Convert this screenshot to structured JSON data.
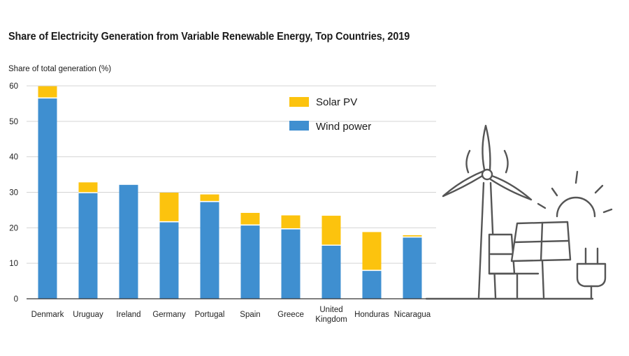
{
  "chart_data": {
    "type": "bar",
    "stacked": true,
    "title": "Share of Electricity Generation from Variable Renewable Energy, Top Countries, 2019",
    "ylabel": "Share of total generation (%)",
    "xlabel": "",
    "ylim": [
      0,
      60
    ],
    "yticks": [
      0,
      10,
      20,
      30,
      40,
      50,
      60
    ],
    "grid": true,
    "legend_position": "top-right",
    "categories": [
      "Denmark",
      "Uruguay",
      "Ireland",
      "Germany",
      "Portugal",
      "Spain",
      "Greece",
      "United Kingdom",
      "Honduras",
      "Nicaragua"
    ],
    "category_lines": [
      [
        "Denmark"
      ],
      [
        "Uruguay"
      ],
      [
        "Ireland"
      ],
      [
        "Germany"
      ],
      [
        "Portugal"
      ],
      [
        "Spain"
      ],
      [
        "Greece"
      ],
      [
        "United",
        "Kingdom"
      ],
      [
        "Honduras"
      ],
      [
        "Nicaragua"
      ]
    ],
    "series": [
      {
        "name": "Wind power",
        "color": "#3f8fd0",
        "values": [
          56.6,
          29.9,
          32.1,
          21.7,
          27.4,
          20.8,
          19.7,
          15.1,
          8.0,
          17.4
        ]
      },
      {
        "name": "Solar PV",
        "color": "#fcc30e",
        "values": [
          3.3,
          2.9,
          0.0,
          8.2,
          2.0,
          3.4,
          3.8,
          8.3,
          10.8,
          0.5
        ]
      }
    ],
    "legend": [
      "Solar PV",
      "Wind power"
    ]
  },
  "illustration": {
    "label": "wind turbine, solar panels, sun and power plug line-art",
    "color": "#555555"
  }
}
